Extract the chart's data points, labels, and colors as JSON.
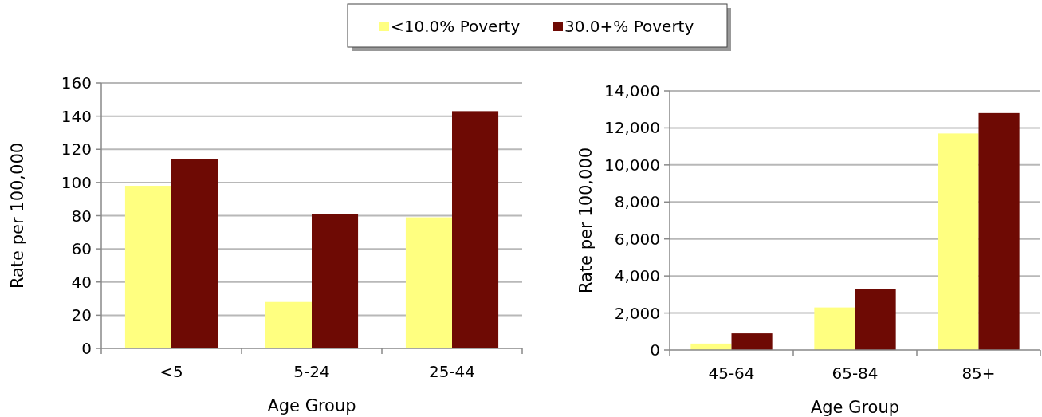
{
  "chart_data": [
    {
      "type": "bar",
      "categories": [
        "<5",
        "5-24",
        "25-44"
      ],
      "xlabel": "Age Group",
      "ylabel": "Rate per 100,000",
      "ylim": [
        0,
        160
      ],
      "yticks": [
        0,
        20,
        40,
        60,
        80,
        100,
        120,
        140,
        160
      ],
      "grid": "y",
      "legend": "top",
      "series": [
        {
          "name": "<10.0% Poverty",
          "color": "#ffff80",
          "values": [
            98,
            28,
            79
          ]
        },
        {
          "name": "30.0+% Poverty",
          "color": "#6e0a04",
          "values": [
            114,
            81,
            143
          ]
        }
      ]
    },
    {
      "type": "bar",
      "categories": [
        "45-64",
        "65-84",
        "85+"
      ],
      "xlabel": "Age Group",
      "ylabel": "Rate per 100,000",
      "ylim": [
        0,
        14000
      ],
      "yticks": [
        {
          "value": 0,
          "label": "0"
        },
        {
          "value": 2000,
          "label": "2,000"
        },
        {
          "value": 4000,
          "label": "4,000"
        },
        {
          "value": 6000,
          "label": "6,000"
        },
        {
          "value": 8000,
          "label": "8,000"
        },
        {
          "value": 10000,
          "label": "10,000"
        },
        {
          "value": 12000,
          "label": "12,000"
        },
        {
          "value": 14000,
          "label": "14,000"
        }
      ],
      "grid": "y",
      "series": [
        {
          "color": "#ffff80",
          "values": [
            350,
            2300,
            11700
          ]
        },
        {
          "color": "#6e0a04",
          "values": [
            900,
            3300,
            12800
          ]
        }
      ]
    }
  ]
}
